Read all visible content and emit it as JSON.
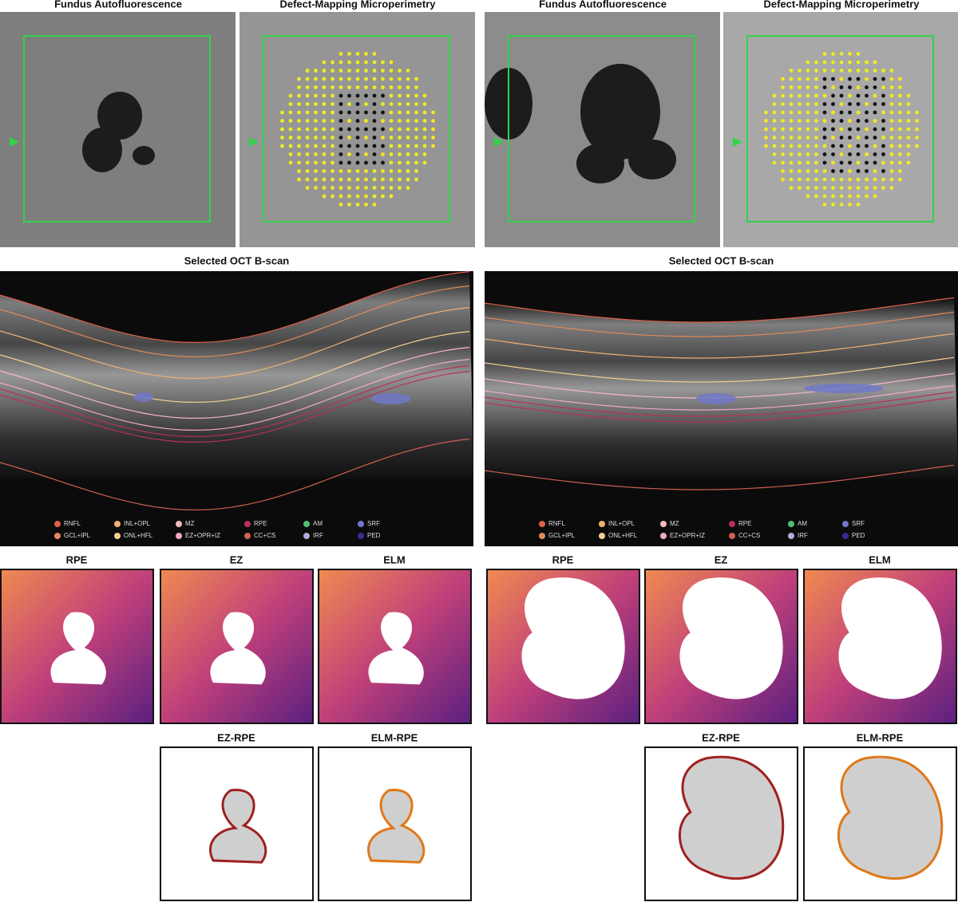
{
  "panels": [
    {
      "fundus_title": "Fundus Autofluorescence",
      "microperimetry_title": "Defect-Mapping Microperimetry",
      "oct_title": "Selected OCT B-scan",
      "legend": [
        {
          "label": "RNFL",
          "color": "#e0604a"
        },
        {
          "label": "GCL+IPL",
          "color": "#e08a5a"
        },
        {
          "label": "INL+OPL",
          "color": "#f0b070"
        },
        {
          "label": "ONL+HFL",
          "color": "#f5d090"
        },
        {
          "label": "MZ",
          "color": "#f4b8c0"
        },
        {
          "label": "EZ+OPR+IZ",
          "color": "#f0a8d0"
        },
        {
          "label": "RPE",
          "color": "#b8305a"
        },
        {
          "label": "CC+CS",
          "color": "#d06050"
        },
        {
          "label": "AM",
          "color": "#50c070"
        },
        {
          "label": "IRF",
          "color": "#a8b0e0"
        },
        {
          "label": "SRF",
          "color": "#7078c8"
        },
        {
          "label": "PED",
          "color": "#303090"
        }
      ],
      "maps": [
        "RPE",
        "EZ",
        "ELM"
      ],
      "differences": [
        {
          "label": "EZ-RPE",
          "color": "#a02020"
        },
        {
          "label": "ELM-RPE",
          "color": "#e07818"
        }
      ]
    },
    {
      "fundus_title": "Fundus Autofluorescence",
      "microperimetry_title": "Defect-Mapping Microperimetry",
      "oct_title": "Selected OCT B-scan",
      "legend": [
        {
          "label": "RNFL",
          "color": "#e0604a"
        },
        {
          "label": "GCL+IPL",
          "color": "#e08a5a"
        },
        {
          "label": "INL+OPL",
          "color": "#f0b070"
        },
        {
          "label": "ONL+HFL",
          "color": "#f5d090"
        },
        {
          "label": "MZ",
          "color": "#f4b8c0"
        },
        {
          "label": "EZ+OPR+IZ",
          "color": "#f0a8d0"
        },
        {
          "label": "RPE",
          "color": "#b8305a"
        },
        {
          "label": "CC+CS",
          "color": "#d06050"
        },
        {
          "label": "AM",
          "color": "#50c070"
        },
        {
          "label": "IRF",
          "color": "#a8b0e0"
        },
        {
          "label": "SRF",
          "color": "#7078c8"
        },
        {
          "label": "PED",
          "color": "#303090"
        }
      ],
      "maps": [
        "RPE",
        "EZ",
        "ELM"
      ],
      "differences": [
        {
          "label": "EZ-RPE",
          "color": "#a02020"
        },
        {
          "label": "ELM-RPE",
          "color": "#e07818"
        }
      ]
    }
  ]
}
